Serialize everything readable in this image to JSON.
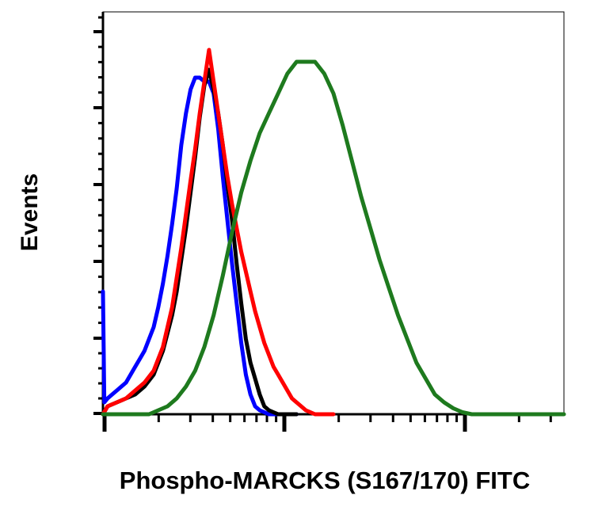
{
  "chart_data": {
    "type": "line",
    "xlabel": "Phospho-MARCKS (S167/170) FITC",
    "ylabel": "Events",
    "x_scale": "log",
    "xlim": [
      0,
      100
    ],
    "ylim": [
      0,
      100
    ],
    "grid": false,
    "legend": "none",
    "series": [
      {
        "color": "#0000ff",
        "x": [
          0,
          0.3,
          1,
          2,
          3,
          4,
          5,
          6,
          7,
          8,
          9,
          10,
          11,
          12,
          13,
          14,
          15,
          16,
          17,
          18,
          19,
          20,
          21,
          22,
          23,
          24,
          25,
          26,
          27,
          28,
          29,
          30,
          31,
          32,
          33,
          34,
          35,
          36,
          38,
          40,
          42
        ],
        "y": [
          31,
          3,
          4,
          5,
          6,
          7,
          8,
          10,
          12,
          14,
          16,
          19,
          22,
          27,
          33,
          40,
          48,
          57,
          68,
          76,
          82,
          85,
          85,
          84,
          84,
          81,
          72,
          60,
          49,
          38,
          28,
          18,
          10,
          5,
          2,
          1,
          0.5,
          0,
          0,
          0,
          0
        ]
      },
      {
        "color": "#000000",
        "x": [
          0,
          1,
          3,
          5,
          7,
          9,
          11,
          13,
          15,
          16,
          17,
          18,
          19,
          20,
          21,
          22,
          23,
          24,
          25,
          26,
          27,
          28,
          29,
          30,
          31,
          32,
          33,
          34,
          35,
          36,
          37,
          38,
          40,
          42
        ],
        "y": [
          0,
          2,
          3,
          4,
          5,
          7,
          10,
          16,
          25,
          31,
          39,
          47,
          56,
          65,
          75,
          83,
          87,
          82,
          76,
          68,
          58,
          49,
          38,
          28,
          19,
          13,
          9,
          5,
          2,
          1,
          0.5,
          0,
          0,
          0
        ]
      },
      {
        "color": "#ff0000",
        "x": [
          0,
          1,
          3,
          5,
          7,
          9,
          11,
          13,
          15,
          17,
          19,
          20,
          21,
          22,
          23,
          24,
          25,
          26,
          27,
          28,
          29,
          30,
          31,
          32,
          33,
          34,
          35,
          36,
          37,
          38,
          39,
          40,
          41,
          42,
          43,
          44,
          45,
          46,
          48,
          50
        ],
        "y": [
          0,
          2,
          3,
          4,
          6,
          8,
          11,
          17,
          27,
          42,
          59,
          67,
          76,
          84,
          92,
          84,
          76,
          68,
          60,
          53,
          47,
          41,
          36,
          31,
          26,
          22,
          18,
          15,
          12,
          10,
          8,
          6,
          4,
          3,
          2,
          1,
          0.5,
          0,
          0,
          0
        ]
      },
      {
        "color": "#1e7a1e",
        "x": [
          0,
          10,
          12,
          14,
          16,
          18,
          20,
          22,
          24,
          26,
          28,
          30,
          32,
          34,
          36,
          38,
          40,
          42,
          44,
          46,
          48,
          50,
          52,
          54,
          56,
          58,
          60,
          62,
          64,
          66,
          68,
          70,
          72,
          74,
          76,
          78,
          80,
          85,
          90,
          100
        ],
        "y": [
          0,
          0,
          1,
          2,
          4,
          7,
          11,
          17,
          25,
          35,
          46,
          56,
          64,
          71,
          76,
          81,
          86,
          89,
          89,
          89,
          86,
          81,
          73,
          64,
          55,
          47,
          39,
          32,
          25,
          19,
          13,
          9,
          5,
          3,
          1.5,
          0.5,
          0,
          0,
          0,
          0
        ]
      }
    ]
  }
}
